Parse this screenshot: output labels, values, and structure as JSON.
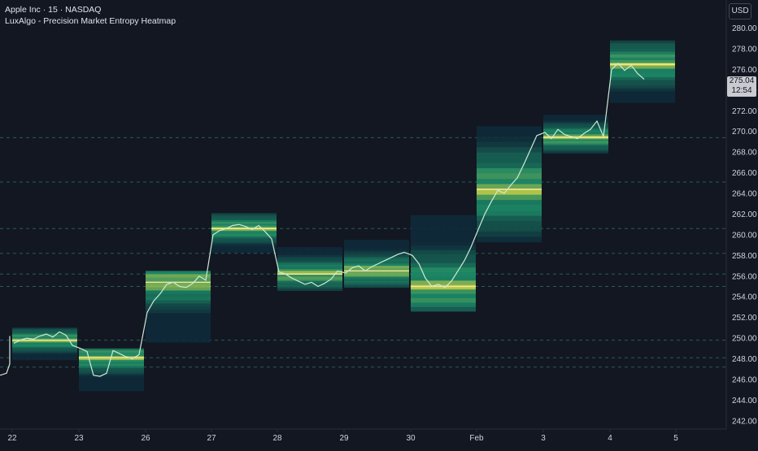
{
  "header": {
    "symbol_line": "Apple Inc · 15 · NASDAQ",
    "indicator_line": "LuxAlgo - Precision Market Entropy Heatmap"
  },
  "toolbar": {
    "currency_label": "USD"
  },
  "last_price": {
    "value": "275.04",
    "countdown": "12:54",
    "price": 275.04
  },
  "colors": {
    "background": "#131722",
    "grid_line": "#2a3a4a",
    "poc_line": "#f0e890",
    "price_line": "#cfe9d8",
    "axis_text": "#d1d4dc",
    "level_line": "#2b6e66",
    "heat_low": "#0f2a3a",
    "heat_mid": "#1e8f6a",
    "heat_high": "#d8e04a"
  },
  "chart_data": {
    "type": "line",
    "title": "Apple Inc · 15 · NASDAQ",
    "subtitle": "LuxAlgo - Precision Market Entropy Heatmap",
    "xlabel": "",
    "ylabel": "",
    "x_ticks": [
      "22",
      "23",
      "26",
      "27",
      "28",
      "29",
      "30",
      "Feb",
      "3",
      "4",
      "5"
    ],
    "y_ticks": [
      "242.00",
      "244.00",
      "246.00",
      "248.00",
      "250.00",
      "252.00",
      "254.00",
      "256.00",
      "258.00",
      "260.00",
      "262.00",
      "264.00",
      "266.00",
      "268.00",
      "270.00",
      "272.00",
      "274.00",
      "276.00",
      "278.00",
      "280.00"
    ],
    "ylim": [
      241.2,
      281.3
    ],
    "grid": false,
    "heatmap_blocks": [
      {
        "session": "22",
        "low": 247.9,
        "high": 251.0,
        "poc": 249.8
      },
      {
        "session": "23",
        "low": 244.9,
        "high": 249.0,
        "poc": 248.1
      },
      {
        "session": "26",
        "low": 249.6,
        "high": 256.5,
        "poc": 255.4
      },
      {
        "session": "27",
        "low": 258.3,
        "high": 262.1,
        "poc": 260.6
      },
      {
        "session": "28",
        "low": 254.6,
        "high": 258.8,
        "poc": 256.2
      },
      {
        "session": "29",
        "low": 254.9,
        "high": 259.5,
        "poc": 256.5
      },
      {
        "session": "30",
        "low": 252.6,
        "high": 261.9,
        "poc": 255.0
      },
      {
        "session": "Feb",
        "low": 259.3,
        "high": 270.5,
        "poc": 264.4
      },
      {
        "session": "3",
        "low": 267.9,
        "high": 271.6,
        "poc": 269.4
      },
      {
        "session": "4",
        "low": 272.8,
        "high": 278.8,
        "poc": 276.5
      }
    ],
    "level_lines": [
      247.2,
      248.1,
      249.8,
      255.0,
      256.2,
      258.2,
      260.6,
      265.1,
      269.4
    ],
    "series": [
      {
        "x": [
          "22",
          "22.1",
          "22.2",
          "22.3",
          "22.4",
          "22.5",
          "22.6",
          "22.7",
          "22.8",
          "22.9",
          "23.0",
          "23.1",
          "23.2",
          "23.3",
          "23.4",
          "23.5",
          "23.6",
          "23.7",
          "23.8",
          "23.9",
          "26.0",
          "26.1",
          "26.2",
          "26.3",
          "26.4",
          "26.5",
          "26.6",
          "26.7",
          "26.8",
          "26.9",
          "27.0",
          "27.1",
          "27.2",
          "27.3",
          "27.4",
          "27.5",
          "27.6",
          "27.7",
          "27.8",
          "27.9",
          "28.0",
          "28.1",
          "28.2",
          "28.3",
          "28.4",
          "28.5",
          "28.6",
          "28.7",
          "28.8",
          "28.9",
          "29.0",
          "29.1",
          "29.2",
          "29.3",
          "29.4",
          "29.5",
          "29.6",
          "29.7",
          "29.8",
          "29.9",
          "30.0",
          "30.1",
          "30.2",
          "30.3",
          "30.4",
          "30.5",
          "30.6",
          "30.7",
          "30.8",
          "30.9",
          "Feb.0",
          "Feb.1",
          "Feb.2",
          "Feb.3",
          "Feb.4",
          "Feb.5",
          "Feb.6",
          "Feb.7",
          "Feb.8",
          "Feb.9",
          "3.0",
          "3.1",
          "3.2",
          "3.3",
          "3.4",
          "3.5",
          "3.6",
          "3.7",
          "3.8",
          "3.9",
          "4.0",
          "4.1",
          "4.2",
          "4.3",
          "4.4",
          "4.5"
        ],
        "values": [
          249.5,
          249.8,
          250.0,
          249.9,
          250.2,
          250.4,
          250.1,
          250.6,
          250.3,
          249.3,
          249.0,
          248.7,
          246.4,
          246.3,
          246.6,
          248.8,
          248.5,
          248.2,
          248.0,
          248.4,
          252.5,
          253.6,
          254.3,
          255.2,
          255.4,
          255.0,
          254.9,
          255.3,
          256.0,
          255.6,
          260.0,
          260.4,
          260.6,
          260.9,
          261.0,
          260.8,
          260.5,
          260.9,
          260.3,
          259.6,
          256.4,
          256.2,
          255.8,
          255.5,
          255.2,
          255.4,
          255.0,
          255.3,
          255.7,
          256.5,
          256.3,
          256.8,
          257.0,
          256.5,
          256.9,
          257.2,
          257.5,
          257.8,
          258.1,
          258.3,
          258.0,
          257.2,
          255.8,
          255.0,
          255.2,
          254.9,
          255.5,
          256.5,
          257.5,
          258.8,
          260.5,
          262.0,
          263.2,
          264.3,
          264.0,
          264.8,
          265.5,
          266.8,
          268.2,
          269.6,
          269.9,
          269.3,
          270.2,
          269.7,
          269.5,
          269.3,
          269.8,
          270.2,
          271.0,
          269.5,
          276.0,
          276.6,
          275.9,
          276.4,
          275.6,
          275.04
        ]
      }
    ]
  }
}
